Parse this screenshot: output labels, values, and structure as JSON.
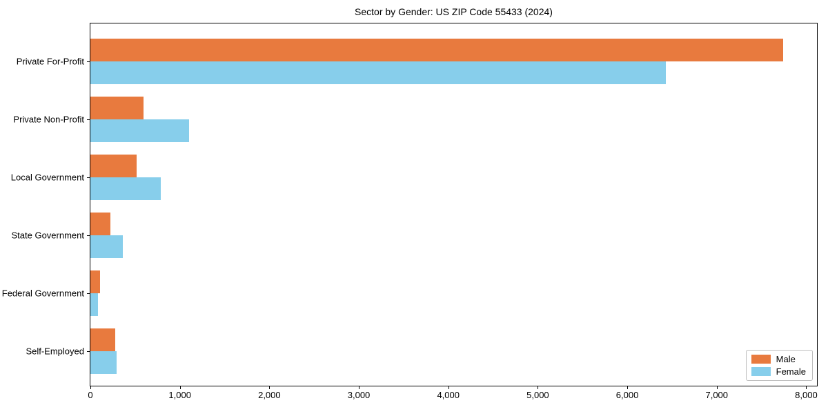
{
  "chart_data": {
    "type": "bar",
    "orientation": "horizontal",
    "title": "Sector by Gender: US ZIP Code 55433 (2024)",
    "xlabel": "",
    "ylabel": "",
    "grid": false,
    "legend_position": "lower right",
    "xlim": [
      0,
      8120
    ],
    "categories": [
      "Private For-Profit",
      "Private Non-Profit",
      "Local Government",
      "State Government",
      "Federal Government",
      "Self-Employed"
    ],
    "series": [
      {
        "name": "Male",
        "color": "#e87a3e",
        "values": [
          7740,
          590,
          515,
          225,
          105,
          280
        ]
      },
      {
        "name": "Female",
        "color": "#87ceeb",
        "values": [
          6430,
          1100,
          785,
          360,
          85,
          295
        ]
      }
    ],
    "x_ticks": [
      {
        "value": 0,
        "label": "0"
      },
      {
        "value": 1000,
        "label": "1,000"
      },
      {
        "value": 2000,
        "label": "2,000"
      },
      {
        "value": 3000,
        "label": "3,000"
      },
      {
        "value": 4000,
        "label": "4,000"
      },
      {
        "value": 5000,
        "label": "5,000"
      },
      {
        "value": 6000,
        "label": "6,000"
      },
      {
        "value": 7000,
        "label": "7,000"
      },
      {
        "value": 8000,
        "label": "8,000"
      }
    ]
  }
}
